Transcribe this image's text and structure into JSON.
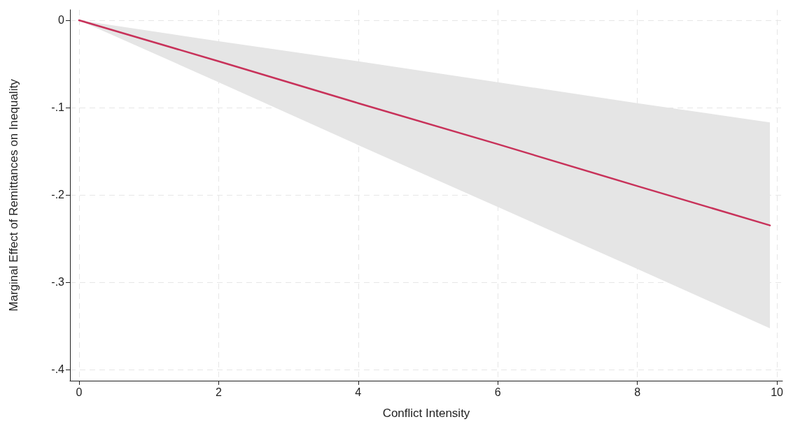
{
  "chart_data": {
    "type": "line",
    "xlabel": "Conflict Intensity",
    "ylabel": "Marginal Effect of Remittances on Inequality",
    "x": [
      0,
      2,
      4,
      6,
      8,
      9.9
    ],
    "series": [
      {
        "color": "#c8325a",
        "values": [
          0,
          -0.047,
          -0.095,
          -0.142,
          -0.19,
          -0.235
        ],
        "lower": [
          0,
          -0.071,
          -0.143,
          -0.214,
          -0.285,
          -0.353
        ],
        "upper": [
          0,
          -0.024,
          -0.047,
          -0.071,
          -0.095,
          -0.117
        ]
      }
    ],
    "xlim": [
      -0.13,
      10.08
    ],
    "ylim": [
      -0.413,
      0.012
    ],
    "xticks": [
      0,
      2,
      4,
      6,
      8,
      10
    ],
    "yticks": [
      {
        "value": 0,
        "label": "0"
      },
      {
        "value": -0.1,
        "label": "-.1"
      },
      {
        "value": -0.2,
        "label": "-.2"
      },
      {
        "value": -0.3,
        "label": "-.3"
      },
      {
        "value": -0.4,
        "label": "-.4"
      }
    ],
    "grid": true,
    "marker": "none",
    "line_style": "solid"
  }
}
